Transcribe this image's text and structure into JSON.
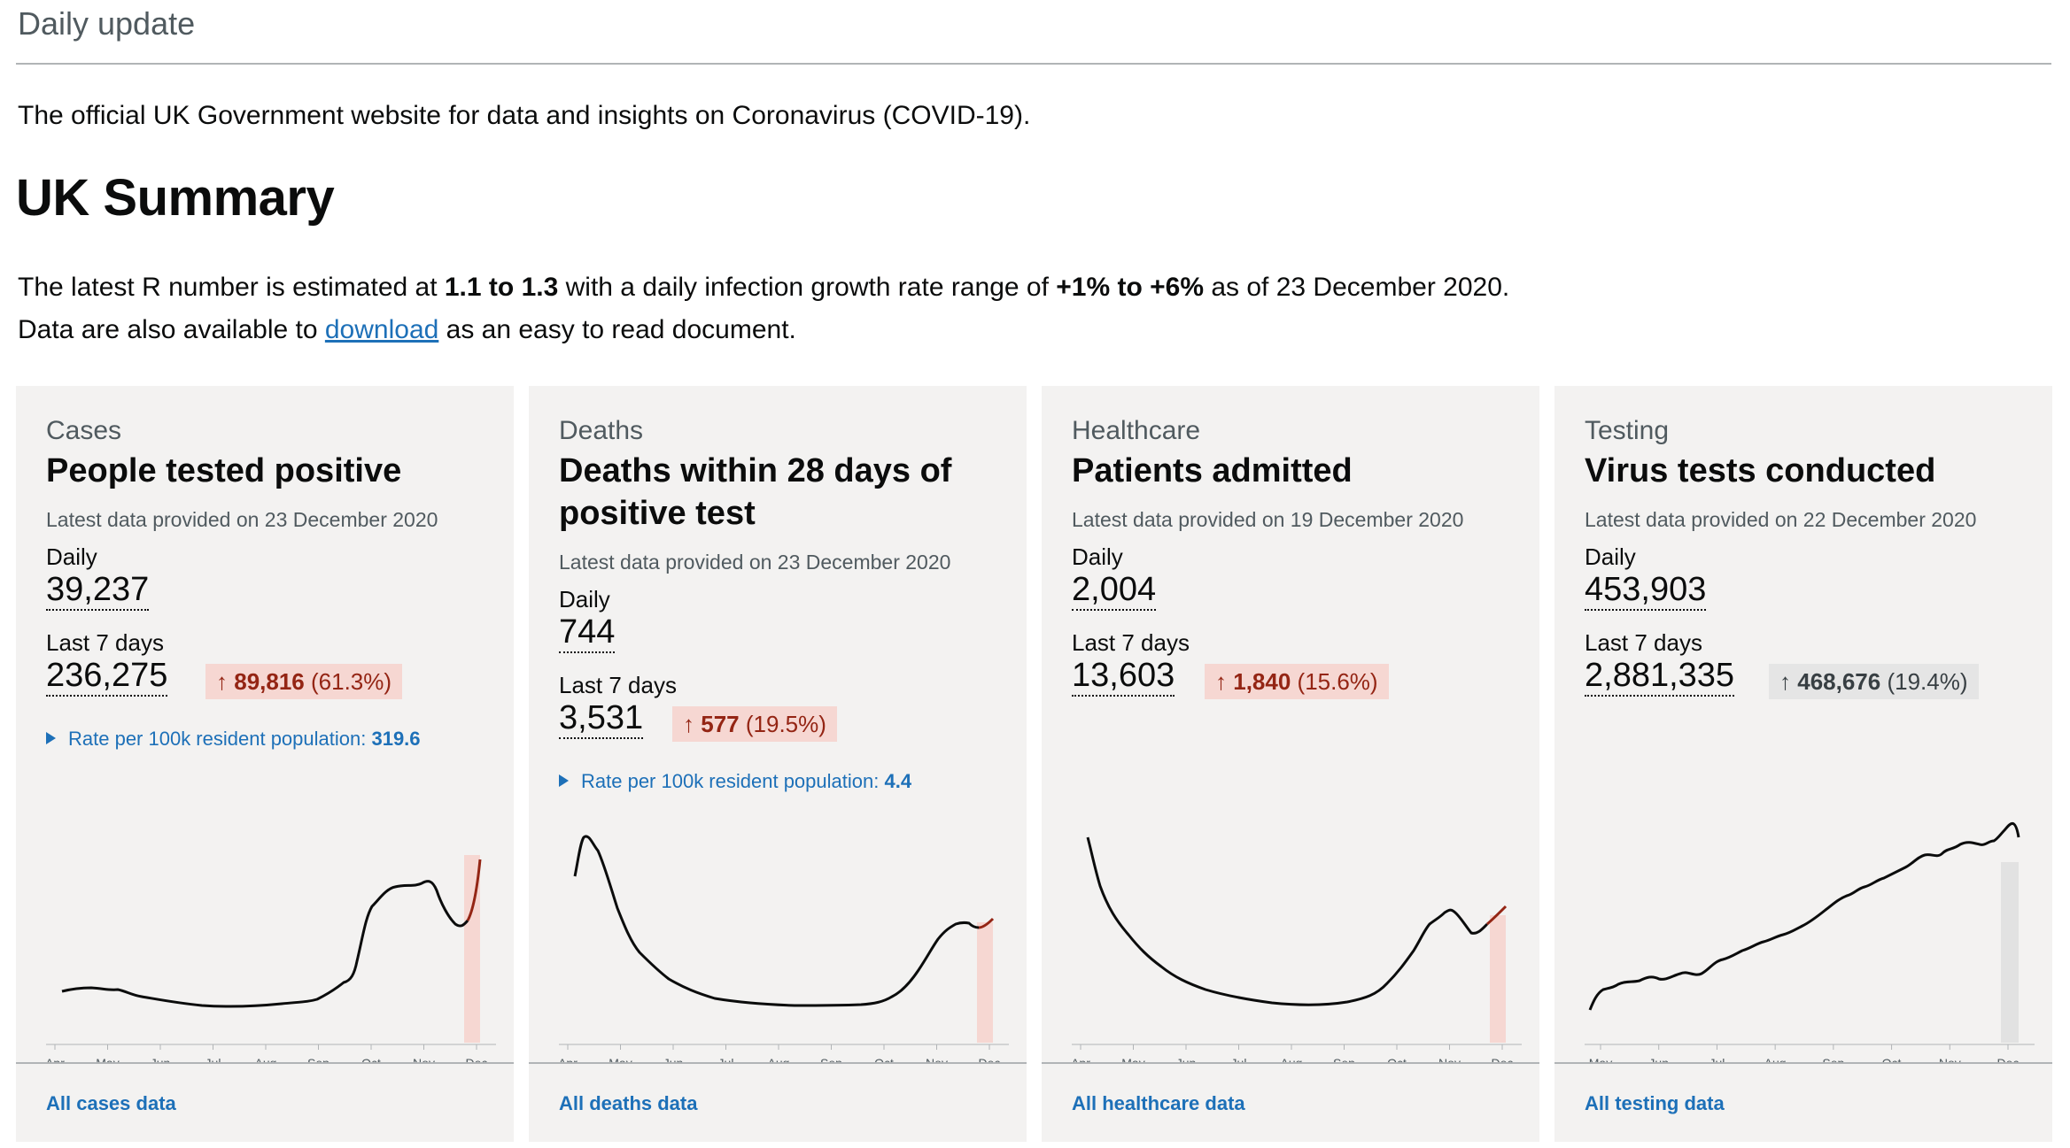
{
  "header": {
    "daily_update": "Daily update"
  },
  "intro": "The official UK Government website for data and insights on Coronavirus (COVID-19).",
  "page_title": "UK Summary",
  "r_number": {
    "prefix": "The latest R number is estimated at ",
    "r_range": "1.1 to 1.3",
    "middle": " with a daily infection growth rate range of ",
    "growth_range": "+1% to +6%",
    "suffix": " as of 23 December 2020."
  },
  "download_line": {
    "prefix": "Data are also available to ",
    "link": "download",
    "suffix": " as an easy to read document."
  },
  "colors": {
    "red_bg": "#f6d7d2",
    "red_text": "#942514",
    "link": "#1d70b8",
    "line": "#0b0c0c",
    "red_line": "#942514"
  },
  "cards": [
    {
      "category": "Cases",
      "title": "People tested positive",
      "latest": "Latest data provided on 23 December 2020",
      "daily_label": "Daily",
      "daily_value": "39,237",
      "week_label": "Last 7 days",
      "week_value": "236,275",
      "change_value": "89,816",
      "change_pct": "(61.3%)",
      "change_arrow": "↑",
      "rate_label": "Rate per 100k resident population:",
      "rate_value": "319.6",
      "footer_link": "All cases data",
      "chart": {
        "ticks": [
          "Apr",
          "May",
          "Jun",
          "Jul",
          "Aug",
          "Sep",
          "Oct",
          "Nov",
          "Dec"
        ]
      }
    },
    {
      "category": "Deaths",
      "title": "Deaths within 28 days of positive test",
      "latest": "Latest data provided on 23 December 2020",
      "daily_label": "Daily",
      "daily_value": "744",
      "week_label": "Last 7 days",
      "week_value": "3,531",
      "change_value": "577",
      "change_pct": "(19.5%)",
      "change_arrow": "↑",
      "rate_label": "Rate per 100k resident population:",
      "rate_value": "4.4",
      "footer_link": "All deaths data",
      "chart": {
        "ticks": [
          "Apr",
          "May",
          "Jun",
          "Jul",
          "Aug",
          "Sep",
          "Oct",
          "Nov",
          "Dec"
        ]
      }
    },
    {
      "category": "Healthcare",
      "title": "Patients admitted",
      "latest": "Latest data provided on 19 December 2020",
      "daily_label": "Daily",
      "daily_value": "2,004",
      "week_label": "Last 7 days",
      "week_value": "13,603",
      "change_value": "1,840",
      "change_pct": "(15.6%)",
      "change_arrow": "↑",
      "footer_link": "All healthcare data",
      "chart": {
        "ticks": [
          "Apr",
          "May",
          "Jun",
          "Jul",
          "Aug",
          "Sep",
          "Oct",
          "Nov",
          "Dec"
        ]
      }
    },
    {
      "category": "Testing",
      "title": "Virus tests conducted",
      "latest": "Latest data provided on 22 December 2020",
      "daily_label": "Daily",
      "daily_value": "453,903",
      "week_label": "Last 7 days",
      "week_value": "2,881,335",
      "change_value": "468,676",
      "change_pct": "(19.4%)",
      "change_arrow": "↑",
      "footer_link": "All testing data",
      "chart": {
        "ticks": [
          "May",
          "Jun",
          "Jul",
          "Aug",
          "Sep",
          "Oct",
          "Nov",
          "Dec"
        ]
      }
    }
  ]
}
